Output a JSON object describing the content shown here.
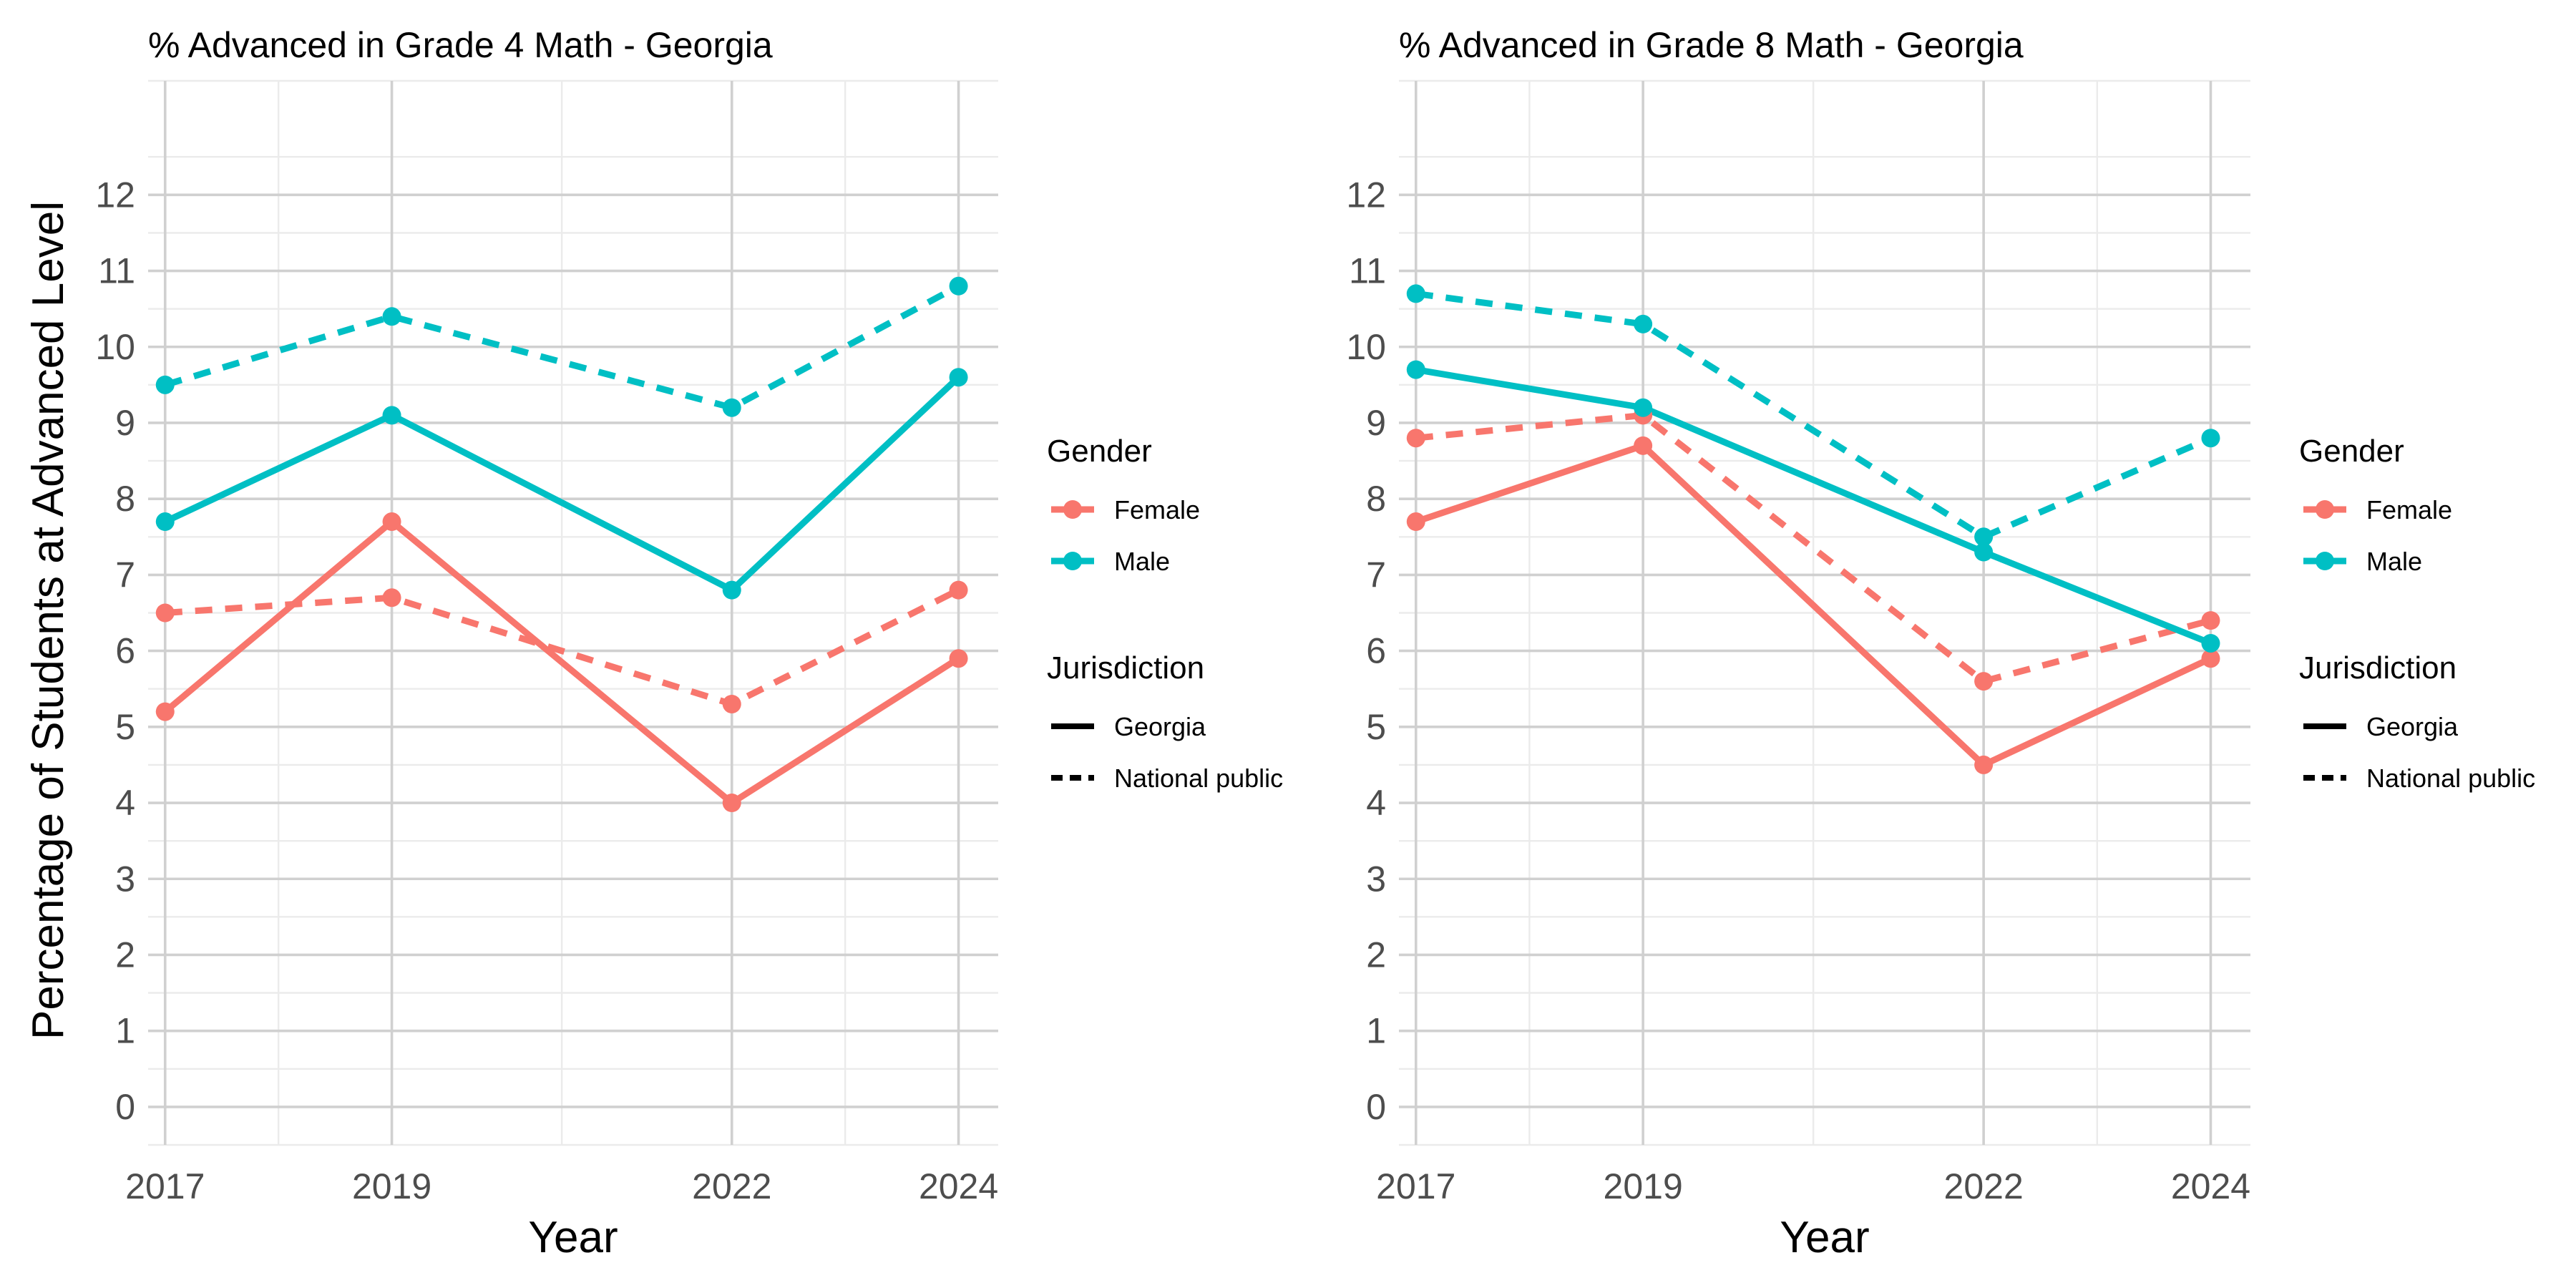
{
  "figure": {
    "ylabel": "Percentage of Students at Advanced Level"
  },
  "colors": {
    "female": "#F8766D",
    "male": "#00BFC4",
    "grid_major": "#d0d0d0",
    "grid_minor": "#ebebeb",
    "tick_text": "#4d4d4d",
    "text": "#000000"
  },
  "legend": {
    "gender_title": "Gender",
    "gender_items": [
      {
        "label": "Female",
        "color": "#F8766D"
      },
      {
        "label": "Male",
        "color": "#00BFC4"
      }
    ],
    "jurisdiction_title": "Jurisdiction",
    "jurisdiction_items": [
      {
        "label": "Georgia",
        "linestyle": "solid"
      },
      {
        "label": "National public",
        "linestyle": "dashed"
      }
    ]
  },
  "chart_data": [
    {
      "type": "line",
      "title": "% Advanced in Grade 4 Math - Georgia",
      "xlabel": "Year",
      "ylabel": "Percentage of Students at Advanced Level",
      "x": [
        2017,
        2019,
        2022,
        2024
      ],
      "xlim": [
        2016.85,
        2024.35
      ],
      "ylim": [
        -0.5,
        13.5
      ],
      "yticks": [
        0,
        1,
        2,
        3,
        4,
        5,
        6,
        7,
        8,
        9,
        10,
        11,
        12
      ],
      "grid": true,
      "legend_position": "right",
      "series": [
        {
          "name": "Female",
          "jurisdiction": "Georgia",
          "color": "#F8766D",
          "linestyle": "solid",
          "values": [
            5.2,
            7.7,
            4.0,
            5.9
          ]
        },
        {
          "name": "Female",
          "jurisdiction": "National public",
          "color": "#F8766D",
          "linestyle": "dashed",
          "values": [
            6.5,
            6.7,
            5.3,
            6.8
          ]
        },
        {
          "name": "Male",
          "jurisdiction": "Georgia",
          "color": "#00BFC4",
          "linestyle": "solid",
          "values": [
            7.7,
            9.1,
            6.8,
            9.6
          ]
        },
        {
          "name": "Male",
          "jurisdiction": "National public",
          "color": "#00BFC4",
          "linestyle": "dashed",
          "values": [
            9.5,
            10.4,
            9.2,
            10.8
          ]
        }
      ]
    },
    {
      "type": "line",
      "title": "% Advanced in Grade 8 Math - Georgia",
      "xlabel": "Year",
      "ylabel": "",
      "x": [
        2017,
        2019,
        2022,
        2024
      ],
      "xlim": [
        2016.85,
        2024.35
      ],
      "ylim": [
        -0.5,
        13.5
      ],
      "yticks": [
        0,
        1,
        2,
        3,
        4,
        5,
        6,
        7,
        8,
        9,
        10,
        11,
        12
      ],
      "grid": true,
      "legend_position": "right",
      "series": [
        {
          "name": "Female",
          "jurisdiction": "Georgia",
          "color": "#F8766D",
          "linestyle": "solid",
          "values": [
            7.7,
            8.7,
            4.5,
            5.9
          ]
        },
        {
          "name": "Female",
          "jurisdiction": "National public",
          "color": "#F8766D",
          "linestyle": "dashed",
          "values": [
            8.8,
            9.1,
            5.6,
            6.4
          ]
        },
        {
          "name": "Male",
          "jurisdiction": "Georgia",
          "color": "#00BFC4",
          "linestyle": "solid",
          "values": [
            9.7,
            9.2,
            7.3,
            6.1
          ]
        },
        {
          "name": "Male",
          "jurisdiction": "National public",
          "color": "#00BFC4",
          "linestyle": "dashed",
          "values": [
            10.7,
            10.3,
            7.5,
            8.8
          ]
        }
      ]
    }
  ]
}
